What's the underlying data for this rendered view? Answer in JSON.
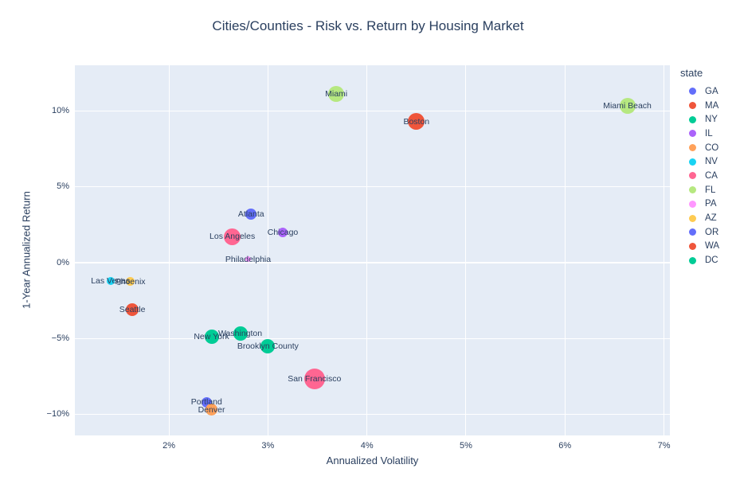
{
  "chart_data": {
    "type": "scatter",
    "title": "Cities/Counties - Risk vs. Return by Housing Market",
    "xlabel": "Annualized Volatility",
    "ylabel": "1-Year Annualized Return",
    "grid": true,
    "plot_bg": "#e5ecf6",
    "grid_color": "#ffffff",
    "font_color": "#2a3f5f",
    "x_range": [
      1.05,
      7.06
    ],
    "y_range": [
      -11.4,
      13.0
    ],
    "x_ticks": [
      {
        "value": 2,
        "label": "2%"
      },
      {
        "value": 3,
        "label": "3%"
      },
      {
        "value": 4,
        "label": "4%"
      },
      {
        "value": 5,
        "label": "5%"
      },
      {
        "value": 6,
        "label": "6%"
      },
      {
        "value": 7,
        "label": "7%"
      }
    ],
    "y_ticks": [
      {
        "value": -10,
        "label": "−10%"
      },
      {
        "value": -5,
        "label": "−5%"
      },
      {
        "value": 0,
        "label": "0%"
      },
      {
        "value": 5,
        "label": "5%"
      },
      {
        "value": 10,
        "label": "10%"
      }
    ],
    "legend": {
      "title": "state",
      "position": "right",
      "items": [
        {
          "label": "GA",
          "color": "#636EFA"
        },
        {
          "label": "MA",
          "color": "#EF553B"
        },
        {
          "label": "NY",
          "color": "#00CC96"
        },
        {
          "label": "IL",
          "color": "#AB63FA"
        },
        {
          "label": "CO",
          "color": "#FFA15A"
        },
        {
          "label": "NV",
          "color": "#19D3F3"
        },
        {
          "label": "CA",
          "color": "#FF6692"
        },
        {
          "label": "FL",
          "color": "#B6E880"
        },
        {
          "label": "PA",
          "color": "#FF97FF"
        },
        {
          "label": "AZ",
          "color": "#FECB52"
        },
        {
          "label": "OR",
          "color": "#636EFA"
        },
        {
          "label": "WA",
          "color": "#EF553B"
        },
        {
          "label": "DC",
          "color": "#00CC96"
        }
      ]
    },
    "points": [
      {
        "name": "Miami",
        "state": "FL",
        "x": 3.69,
        "y": 11.1,
        "size": 20
      },
      {
        "name": "Miami Beach",
        "state": "FL",
        "x": 6.63,
        "y": 10.3,
        "size": 20
      },
      {
        "name": "Boston",
        "state": "MA",
        "x": 4.5,
        "y": 9.3,
        "size": 21
      },
      {
        "name": "Atlanta",
        "state": "GA",
        "x": 2.83,
        "y": 3.2,
        "size": 14
      },
      {
        "name": "Chicago",
        "state": "IL",
        "x": 3.15,
        "y": 2.0,
        "size": 12
      },
      {
        "name": "Los Angeles",
        "state": "CA",
        "x": 2.64,
        "y": 1.7,
        "size": 21
      },
      {
        "name": "Philadelphia",
        "state": "PA",
        "x": 2.8,
        "y": 0.2,
        "size": 7
      },
      {
        "name": "Las Vegas",
        "state": "NV",
        "x": 1.41,
        "y": -1.2,
        "size": 10
      },
      {
        "name": "Phoenix",
        "state": "AZ",
        "x": 1.61,
        "y": -1.25,
        "size": 11
      },
      {
        "name": "Seattle",
        "state": "WA",
        "x": 1.63,
        "y": -3.1,
        "size": 16
      },
      {
        "name": "New York",
        "state": "NY",
        "x": 2.43,
        "y": -4.9,
        "size": 18
      },
      {
        "name": "Washington",
        "state": "DC",
        "x": 2.72,
        "y": -4.7,
        "size": 18
      },
      {
        "name": "Brooklyn County",
        "state": "NY",
        "x": 3.0,
        "y": -5.5,
        "size": 18
      },
      {
        "name": "San Francisco",
        "state": "CA",
        "x": 3.47,
        "y": -7.7,
        "size": 26
      },
      {
        "name": "Portland",
        "state": "OR",
        "x": 2.38,
        "y": -9.2,
        "size": 13
      },
      {
        "name": "Denver",
        "state": "CO",
        "x": 2.43,
        "y": -9.7,
        "size": 15
      }
    ]
  }
}
